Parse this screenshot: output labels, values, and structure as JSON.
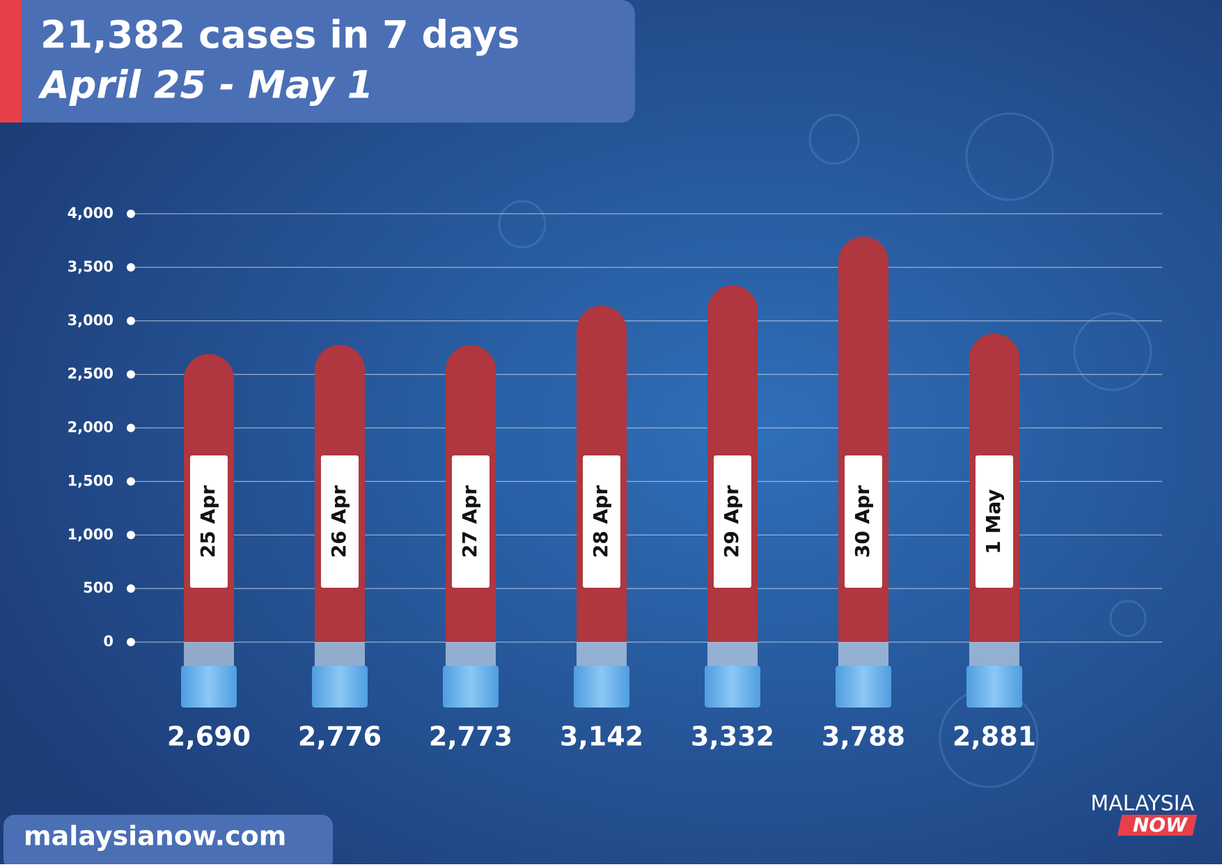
{
  "chart_data": {
    "type": "bar",
    "title": "21,382 cases in 7 days",
    "subtitle": "April 25 - May 1",
    "categories": [
      "25 Apr",
      "26 Apr",
      "27 Apr",
      "28 Apr",
      "29 Apr",
      "30 Apr",
      "1 May"
    ],
    "values": [
      2690,
      2776,
      2773,
      3142,
      3332,
      3788,
      2881
    ],
    "value_labels": [
      "2,690",
      "2,776",
      "2,773",
      "3,142",
      "3,332",
      "3,788",
      "2,881"
    ],
    "color": "#b0363f",
    "ylim": [
      0,
      4000
    ],
    "yticks": [
      0,
      500,
      {
        "value": 1000,
        "label": "1,000"
      },
      {
        "value": 1500,
        "label": "1,500"
      },
      {
        "value": 2000,
        "label": "2,000"
      },
      {
        "value": 2500,
        "label": "2,500"
      },
      {
        "value": 3000,
        "label": "3,000"
      },
      {
        "value": 3500,
        "label": "3,500"
      },
      {
        "value": 4000,
        "label": "4,000"
      }
    ],
    "grid": true
  },
  "footer": {
    "website": "malaysianow.com",
    "logo_top": "MALAYSIA",
    "logo_bottom": "NOW"
  }
}
